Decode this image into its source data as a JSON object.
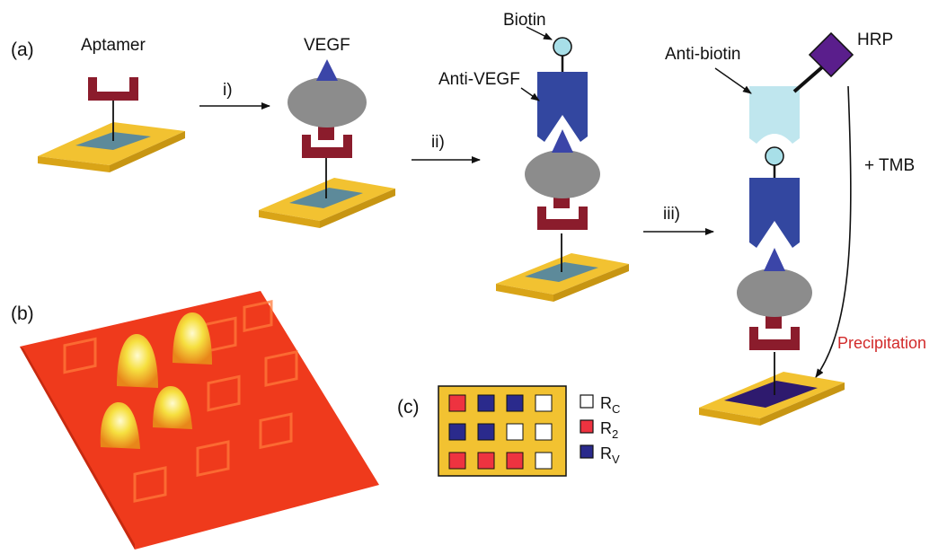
{
  "panels": {
    "a": "(a)",
    "b": "(b)",
    "c": "(c)"
  },
  "labels": {
    "aptamer": "Aptamer",
    "vegf": "VEGF",
    "biotin": "Biotin",
    "anti_vegf": "Anti-VEGF",
    "anti_biotin": "Anti-biotin",
    "hrp": "HRP",
    "tmb": "+ TMB",
    "precipitation": "Precipitation"
  },
  "steps": {
    "i": "i)",
    "ii": "ii)",
    "iii": "iii)"
  },
  "legend": [
    {
      "base": "R",
      "sub": "C",
      "color": "#ffffff"
    },
    {
      "base": "R",
      "sub": "2",
      "color": "#ee3340"
    },
    {
      "base": "R",
      "sub": "V",
      "color": "#2a2a8c"
    }
  ],
  "array_grid": [
    [
      "R2",
      "RV",
      "RV",
      "RC"
    ],
    [
      "RV",
      "RV",
      "RC",
      "RC"
    ],
    [
      "R2",
      "R2",
      "R2",
      "RC"
    ]
  ],
  "colors": {
    "gold": "#f2c231",
    "chip": "#5d8a9a",
    "aptamer": "#8b1c2c",
    "vegf": "#3b45a8",
    "protein": "#8c8c8c",
    "antibody": "#3347a0",
    "biotin": "#a8dfe8",
    "anti_biotin": "#bfe6ee",
    "hrp": "#5a1e8c",
    "precipitate": "#2e1a6e",
    "precip_text": "#d22a2a"
  }
}
